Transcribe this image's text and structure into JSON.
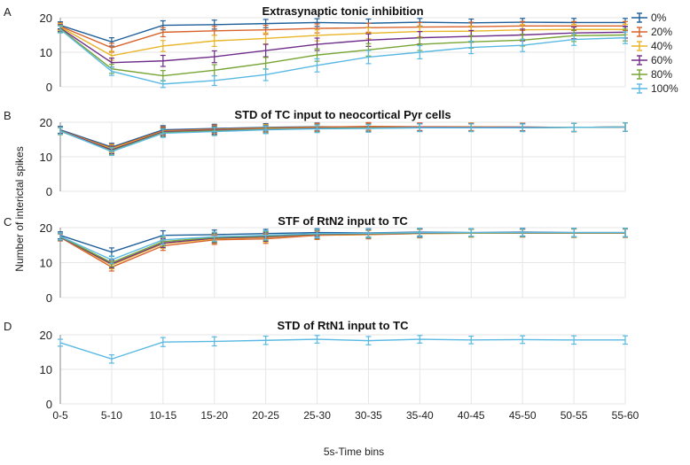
{
  "figure": {
    "panel_letters": [
      "A",
      "B",
      "C",
      "D"
    ],
    "shared_ylabel": "Number of interictal spikes",
    "shared_xlabel": "5s-Time bins",
    "colors": {
      "0%": "#1f5f99",
      "20%": "#d9622b",
      "40%": "#e8b527",
      "60%": "#6f2d8a",
      "80%": "#77a534",
      "100%": "#5ab9e3"
    }
  },
  "chart_data": [
    {
      "type": "line",
      "title": "Extrasynaptic tonic inhibition",
      "categories": [
        "0-5",
        "5-10",
        "10-15",
        "15-20",
        "20-25",
        "25-30",
        "30-35",
        "35-40",
        "40-45",
        "45-50",
        "50-55",
        "55-60"
      ],
      "ylim": [
        0,
        20
      ],
      "yticks": [
        0,
        10,
        20
      ],
      "grid": true,
      "legend": {
        "position": "right",
        "entries": [
          "0%",
          "20%",
          "40%",
          "60%",
          "80%",
          "100%"
        ]
      },
      "series": [
        {
          "name": "0%",
          "values": [
            17.8,
            13.0,
            17.8,
            18.0,
            18.3,
            18.6,
            18.4,
            18.7,
            18.5,
            18.7,
            18.6,
            18.6
          ],
          "errors": [
            1.0,
            1.2,
            1.3,
            1.3,
            1.2,
            1.1,
            1.2,
            1.1,
            1.1,
            1.1,
            1.2,
            1.2
          ]
        },
        {
          "name": "20%",
          "values": [
            17.5,
            11.3,
            15.8,
            16.2,
            16.5,
            16.9,
            17.1,
            17.3,
            17.4,
            17.6,
            17.6,
            17.6
          ],
          "errors": [
            1.0,
            1.3,
            1.3,
            1.3,
            1.3,
            1.3,
            1.3,
            1.3,
            1.3,
            1.3,
            1.3,
            1.3
          ]
        },
        {
          "name": "40%",
          "values": [
            17.3,
            9.0,
            11.8,
            13.3,
            14.0,
            14.9,
            15.5,
            16.0,
            16.1,
            16.5,
            16.6,
            16.6
          ],
          "errors": [
            1.0,
            1.3,
            1.6,
            1.6,
            1.6,
            1.6,
            1.6,
            1.5,
            1.5,
            1.5,
            1.5,
            1.5
          ]
        },
        {
          "name": "60%",
          "values": [
            17.0,
            7.0,
            7.5,
            8.7,
            10.5,
            12.3,
            13.5,
            14.2,
            14.6,
            15.0,
            15.6,
            15.8
          ],
          "errors": [
            1.0,
            1.3,
            1.6,
            1.7,
            1.8,
            1.8,
            1.8,
            1.8,
            1.7,
            1.7,
            1.7,
            1.7
          ]
        },
        {
          "name": "80%",
          "values": [
            16.8,
            5.2,
            3.2,
            4.8,
            6.8,
            9.2,
            10.7,
            12.3,
            13.0,
            13.5,
            14.8,
            15.0
          ],
          "errors": [
            1.0,
            1.3,
            1.5,
            1.6,
            1.7,
            1.8,
            1.8,
            1.8,
            1.8,
            1.7,
            1.7,
            1.7
          ]
        },
        {
          "name": "100%",
          "values": [
            16.6,
            4.5,
            0.8,
            1.8,
            3.5,
            6.2,
            8.6,
            10.0,
            11.4,
            12.0,
            13.7,
            14.2
          ],
          "errors": [
            1.0,
            1.2,
            1.0,
            1.4,
            1.7,
            1.9,
            1.9,
            1.9,
            1.8,
            1.8,
            1.7,
            1.7
          ]
        }
      ]
    },
    {
      "type": "line",
      "title": "STD of TC input to neocortical Pyr cells",
      "categories": [
        "0-5",
        "5-10",
        "10-15",
        "15-20",
        "20-25",
        "25-30",
        "30-35",
        "35-40",
        "40-45",
        "45-50",
        "50-55",
        "55-60"
      ],
      "ylim": [
        0,
        20
      ],
      "yticks": [
        0,
        10,
        20
      ],
      "grid": true,
      "series": [
        {
          "name": "0%",
          "values": [
            17.8,
            12.8,
            17.8,
            18.2,
            18.5,
            18.7,
            18.6,
            18.6,
            18.6,
            18.6,
            18.5,
            18.6
          ],
          "errors": [
            1.0,
            1.1,
            1.2,
            1.2,
            1.1,
            1.1,
            1.1,
            1.1,
            1.1,
            1.1,
            1.2,
            1.2
          ]
        },
        {
          "name": "20%",
          "values": [
            17.6,
            12.5,
            17.5,
            18.0,
            18.3,
            18.6,
            18.8,
            18.7,
            18.7,
            18.6,
            18.5,
            18.6
          ],
          "errors": [
            1.0,
            1.1,
            1.2,
            1.2,
            1.1,
            1.1,
            1.1,
            1.1,
            1.1,
            1.1,
            1.2,
            1.2
          ]
        },
        {
          "name": "40%",
          "values": [
            17.5,
            12.3,
            17.3,
            17.8,
            18.2,
            18.4,
            18.5,
            18.5,
            18.6,
            18.5,
            18.5,
            18.6
          ],
          "errors": [
            1.0,
            1.1,
            1.2,
            1.2,
            1.1,
            1.1,
            1.1,
            1.1,
            1.1,
            1.1,
            1.2,
            1.2
          ]
        },
        {
          "name": "60%",
          "values": [
            17.5,
            12.0,
            17.2,
            17.7,
            18.0,
            18.3,
            18.4,
            18.5,
            18.5,
            18.5,
            18.5,
            18.6
          ],
          "errors": [
            1.0,
            1.1,
            1.2,
            1.2,
            1.1,
            1.1,
            1.1,
            1.1,
            1.1,
            1.1,
            1.2,
            1.2
          ]
        },
        {
          "name": "80%",
          "values": [
            17.4,
            11.7,
            17.0,
            17.5,
            17.9,
            18.2,
            18.3,
            18.4,
            18.4,
            18.4,
            18.5,
            18.6
          ],
          "errors": [
            1.0,
            1.1,
            1.2,
            1.2,
            1.1,
            1.1,
            1.1,
            1.1,
            1.1,
            1.1,
            1.2,
            1.2
          ]
        },
        {
          "name": "100%",
          "values": [
            17.5,
            11.5,
            16.8,
            17.3,
            17.8,
            18.1,
            18.2,
            18.4,
            18.4,
            18.4,
            18.5,
            18.6
          ],
          "errors": [
            1.0,
            1.1,
            1.2,
            1.2,
            1.1,
            1.1,
            1.1,
            1.1,
            1.1,
            1.1,
            1.2,
            1.2
          ]
        }
      ]
    },
    {
      "type": "line",
      "title": "STF of RtN2 input to TC",
      "categories": [
        "0-5",
        "5-10",
        "10-15",
        "15-20",
        "20-25",
        "25-30",
        "30-35",
        "35-40",
        "40-45",
        "45-50",
        "50-55",
        "55-60"
      ],
      "ylim": [
        0,
        20
      ],
      "yticks": [
        0,
        10,
        20
      ],
      "grid": true,
      "series": [
        {
          "name": "0%",
          "values": [
            17.8,
            13.0,
            17.8,
            18.0,
            18.3,
            18.6,
            18.5,
            18.7,
            18.6,
            18.7,
            18.6,
            18.6
          ],
          "errors": [
            1.0,
            1.2,
            1.3,
            1.3,
            1.2,
            1.1,
            1.2,
            1.1,
            1.1,
            1.1,
            1.2,
            1.2
          ]
        },
        {
          "name": "20%",
          "values": [
            17.2,
            8.7,
            14.8,
            16.5,
            16.8,
            17.8,
            18.0,
            18.3,
            18.4,
            18.4,
            18.4,
            18.4
          ],
          "errors": [
            1.0,
            1.1,
            1.3,
            1.3,
            1.3,
            1.2,
            1.2,
            1.2,
            1.1,
            1.1,
            1.2,
            1.2
          ]
        },
        {
          "name": "40%",
          "values": [
            17.3,
            9.3,
            15.4,
            16.8,
            17.2,
            18.0,
            18.1,
            18.3,
            18.4,
            18.5,
            18.5,
            18.5
          ],
          "errors": [
            1.0,
            1.1,
            1.3,
            1.3,
            1.3,
            1.2,
            1.2,
            1.2,
            1.1,
            1.1,
            1.2,
            1.2
          ]
        },
        {
          "name": "60%",
          "values": [
            17.3,
            9.6,
            15.6,
            17.0,
            17.4,
            18.1,
            18.2,
            18.4,
            18.5,
            18.5,
            18.5,
            18.5
          ],
          "errors": [
            1.0,
            1.1,
            1.3,
            1.3,
            1.3,
            1.2,
            1.2,
            1.2,
            1.1,
            1.1,
            1.2,
            1.2
          ]
        },
        {
          "name": "80%",
          "values": [
            17.4,
            10.0,
            16.0,
            17.2,
            17.6,
            18.2,
            18.3,
            18.5,
            18.5,
            18.5,
            18.5,
            18.5
          ],
          "errors": [
            1.0,
            1.1,
            1.3,
            1.3,
            1.3,
            1.2,
            1.2,
            1.2,
            1.1,
            1.1,
            1.2,
            1.2
          ]
        },
        {
          "name": "100%",
          "values": [
            17.5,
            10.8,
            16.5,
            17.4,
            17.8,
            18.3,
            18.4,
            18.6,
            18.6,
            18.6,
            18.6,
            18.6
          ],
          "errors": [
            1.0,
            1.1,
            1.3,
            1.3,
            1.3,
            1.2,
            1.2,
            1.2,
            1.1,
            1.1,
            1.2,
            1.2
          ]
        }
      ]
    },
    {
      "type": "line",
      "title": "STD of RtN1 input to TC",
      "categories": [
        "0-5",
        "5-10",
        "10-15",
        "15-20",
        "20-25",
        "25-30",
        "30-35",
        "35-40",
        "40-45",
        "45-50",
        "50-55",
        "55-60"
      ],
      "ylim": [
        0,
        20
      ],
      "yticks": [
        0,
        10,
        20
      ],
      "grid": true,
      "series": [
        {
          "name": "100%",
          "values": [
            17.7,
            13.0,
            17.9,
            18.1,
            18.4,
            18.7,
            18.3,
            18.7,
            18.5,
            18.6,
            18.5,
            18.5
          ],
          "errors": [
            1.0,
            1.2,
            1.3,
            1.3,
            1.2,
            1.1,
            1.2,
            1.1,
            1.1,
            1.1,
            1.2,
            1.2
          ]
        }
      ]
    }
  ]
}
